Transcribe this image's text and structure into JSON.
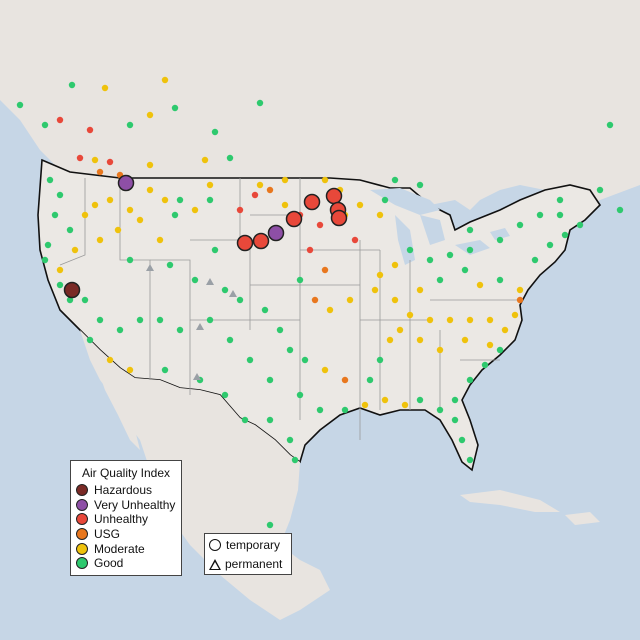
{
  "map": {
    "colors": {
      "ocean": "#c6d6e6",
      "land": "#e9e5e1",
      "us_land": "#eceae6",
      "border": "#111111",
      "state_lines": "#9a9a9a"
    }
  },
  "legend": {
    "title": "Air Quality Index",
    "items": [
      {
        "label": "Hazardous",
        "color": "#7a2a26"
      },
      {
        "label": "Very Unhealthy",
        "color": "#8e4fa6"
      },
      {
        "label": "Unhealthy",
        "color": "#e8483a"
      },
      {
        "label": "USG",
        "color": "#e8771e"
      },
      {
        "label": "Moderate",
        "color": "#efc20c"
      },
      {
        "label": "Good",
        "color": "#2ec96e"
      }
    ]
  },
  "type_legend": {
    "items": [
      {
        "label": "temporary",
        "shape": "circle"
      },
      {
        "label": "permanent",
        "shape": "triangle"
      }
    ]
  }
}
